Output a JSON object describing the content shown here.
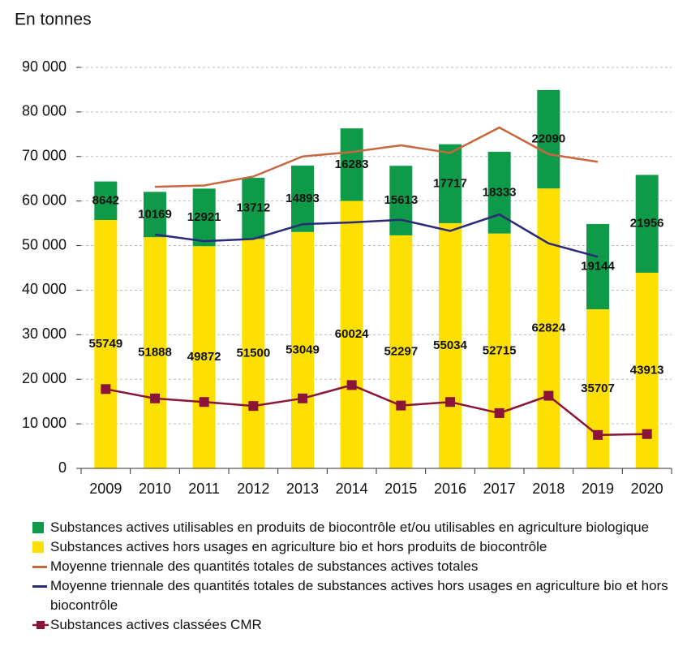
{
  "chart_data": {
    "type": "bar",
    "title": "En tonnes",
    "categories": [
      "2009",
      "2010",
      "2011",
      "2012",
      "2013",
      "2014",
      "2015",
      "2016",
      "2017",
      "2018",
      "2019",
      "2020"
    ],
    "series": [
      {
        "name": "Substances actives utilisables en produits de biocontrôle et/ou utilisables en agriculture biologique",
        "color": "#0e9a48",
        "kind": "bar",
        "values": [
          8642,
          10169,
          12921,
          13712,
          14893,
          16283,
          15613,
          17717,
          18333,
          22090,
          19144,
          21956
        ]
      },
      {
        "name": "Substances actives hors usages en agriculture bio et hors produits de biocontrôle",
        "color": "#fde000",
        "kind": "bar",
        "values": [
          55749,
          51888,
          49872,
          51500,
          53049,
          60024,
          52297,
          55034,
          52715,
          62824,
          35707,
          43913
        ]
      },
      {
        "name": "Moyenne triennale des quantités totales de substances actives totales",
        "color": "#c8673e",
        "kind": "line",
        "values": [
          null,
          63200,
          63500,
          65500,
          70000,
          71000,
          72500,
          70800,
          76500,
          70500,
          68800,
          null
        ]
      },
      {
        "name": "Moyenne triennale des quantités totales de substances actives hors usages en agriculture bio et hors biocontrôle",
        "color": "#2b2a7a",
        "kind": "line",
        "values": [
          null,
          52500,
          51000,
          51500,
          54800,
          55200,
          55800,
          53300,
          57000,
          50500,
          47500,
          null
        ]
      },
      {
        "name": "Substances actives classées CMR",
        "color": "#8b1538",
        "kind": "line",
        "marker": "square",
        "values": [
          17800,
          15700,
          14900,
          14000,
          15700,
          18700,
          14100,
          14900,
          12400,
          16300,
          7500,
          7700
        ]
      }
    ],
    "ylim": [
      0,
      90000
    ],
    "yticks": [
      0,
      {
        "value": 10000,
        "label": "10 000"
      },
      {
        "value": 20000,
        "label": "20 000"
      },
      {
        "value": 30000,
        "label": "30 000"
      },
      {
        "value": 40000,
        "label": "40 000"
      },
      {
        "value": 50000,
        "label": "50 000"
      },
      {
        "value": 60000,
        "label": "60 000"
      },
      {
        "value": 70000,
        "label": "70 000"
      },
      {
        "value": 80000,
        "label": "80 000"
      },
      {
        "value": 90000,
        "label": "90 000"
      }
    ],
    "grid": true
  }
}
